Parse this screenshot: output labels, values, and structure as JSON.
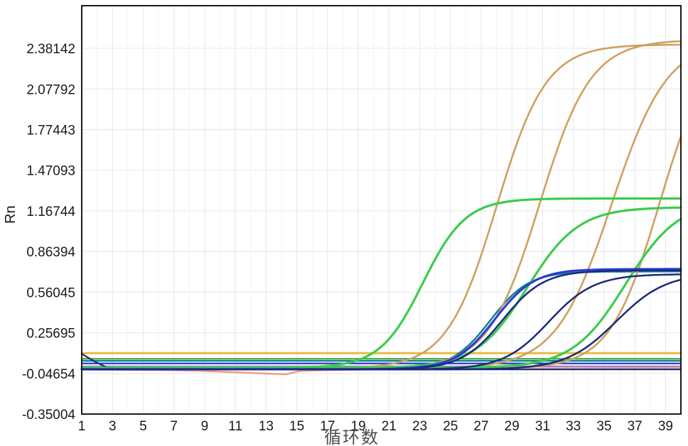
{
  "chart_data": {
    "type": "line",
    "title": "",
    "xlabel": "循环数",
    "ylabel": "Rn",
    "xlim": [
      1,
      40
    ],
    "ylim": [
      -0.35004,
      2.7
    ],
    "grid": true,
    "legend": "none",
    "x_ticks": [
      1,
      3,
      5,
      7,
      9,
      11,
      13,
      15,
      17,
      19,
      21,
      23,
      25,
      27,
      29,
      31,
      33,
      35,
      37,
      39
    ],
    "y_ticks": [
      2.38142,
      2.07792,
      1.77443,
      1.47093,
      1.16744,
      0.86394,
      0.56045,
      0.25695,
      -0.04654,
      -0.35004
    ],
    "y_tick_labels": [
      "2.38142",
      "2.07792",
      "1.77443",
      "1.47093",
      "1.16744",
      "0.86394",
      "0.56045",
      "0.25695",
      "-0.04654",
      "-0.35004"
    ],
    "threshold_rn": 0.105,
    "colors": {
      "tan_orange": "#cfa05e",
      "gold_threshold": "#e8bc3e",
      "bright_green": "#3ccc4c",
      "flat_green": "#2fa23c",
      "teal": "#15808e",
      "royal_blue": "#2a3cd2",
      "navy": "#1b2a7e",
      "purple": "#9383d8",
      "salmon": "#ef9f8f",
      "baseline_green": "#49a03c",
      "grid_major": "#e9eaf2",
      "grid_minor": "#f4f5fa",
      "axis": "#1a1a1a"
    },
    "series": [
      {
        "name": "threshold-line",
        "kind": "flat",
        "value": 0.105,
        "color": "#e8bc3e",
        "width": 3
      },
      {
        "name": "flat-green-control",
        "kind": "flat",
        "value": 0.062,
        "color": "#2fa23c",
        "width": 2.2
      },
      {
        "name": "flat-teal-control",
        "kind": "flat",
        "value": 0.047,
        "color": "#15808e",
        "width": 2.2
      },
      {
        "name": "flat-blue-control",
        "kind": "flat",
        "value": 0.028,
        "color": "#2a3cd2",
        "width": 2.2
      },
      {
        "name": "flat-purple-control",
        "kind": "flat",
        "value": 0.006,
        "color": "#9383d8",
        "width": 2.2
      },
      {
        "name": "flat-green-baseline",
        "kind": "flat",
        "value": -0.012,
        "color": "#49a03c",
        "width": 2.2
      },
      {
        "name": "salmon-baseline-dip",
        "kind": "points",
        "color": "#ef9f8f",
        "width": 2.6,
        "points": [
          [
            1,
            -0.018
          ],
          [
            4,
            -0.02
          ],
          [
            7,
            -0.023
          ],
          [
            9,
            -0.028
          ],
          [
            11,
            -0.038
          ],
          [
            13,
            -0.048
          ],
          [
            14.3,
            -0.053
          ],
          [
            15.2,
            -0.028
          ],
          [
            17,
            -0.022
          ],
          [
            20,
            -0.017
          ],
          [
            25,
            -0.012
          ],
          [
            32,
            -0.008
          ],
          [
            40,
            -0.006
          ]
        ]
      },
      {
        "name": "navy-start-transient",
        "kind": "points",
        "color": "#1b2a7e",
        "width": 2.2,
        "points": [
          [
            1,
            0.1
          ],
          [
            1.8,
            0.045
          ],
          [
            2.6,
            0.0
          ],
          [
            3.5,
            -0.014
          ],
          [
            5,
            -0.017
          ],
          [
            40,
            -0.017
          ]
        ]
      },
      {
        "name": "teal-amplification",
        "kind": "sigmoid",
        "base": -0.015,
        "amp": 0.73,
        "mid": 27.6,
        "k": 0.8,
        "color": "#15808e",
        "width": 2.6
      },
      {
        "name": "orange-amplification-1",
        "kind": "sigmoid",
        "base": -0.01,
        "amp": 2.42,
        "mid": 28.0,
        "k": 0.62,
        "color": "#cfa05e",
        "width": 2.6
      },
      {
        "name": "orange-amplification-2",
        "kind": "sigmoid",
        "base": -0.01,
        "amp": 2.455,
        "mid": 30.8,
        "k": 0.6,
        "color": "#cfa05e",
        "width": 2.6
      },
      {
        "name": "orange-amplification-3",
        "kind": "sigmoid",
        "base": -0.01,
        "amp": 2.46,
        "mid": 35.5,
        "k": 0.55,
        "color": "#cfa05e",
        "width": 2.6
      },
      {
        "name": "orange-amplification-4",
        "kind": "sigmoid",
        "base": -0.01,
        "amp": 2.46,
        "mid": 38.6,
        "k": 0.62,
        "color": "#cfa05e",
        "width": 2.6
      },
      {
        "name": "green-amplification-1",
        "kind": "sigmoid",
        "base": -0.005,
        "amp": 1.265,
        "mid": 23.2,
        "k": 0.72,
        "color": "#3ccc4c",
        "width": 3.2
      },
      {
        "name": "green-amplification-2",
        "kind": "sigmoid",
        "base": -0.005,
        "amp": 1.2,
        "mid": 30.0,
        "k": 0.6,
        "color": "#3ccc4c",
        "width": 3.2
      },
      {
        "name": "green-amplification-3",
        "kind": "sigmoid",
        "base": -0.005,
        "amp": 1.25,
        "mid": 36.4,
        "k": 0.58,
        "color": "#3ccc4c",
        "width": 3.2
      },
      {
        "name": "royal-blue-amplification",
        "kind": "sigmoid",
        "base": -0.015,
        "amp": 0.748,
        "mid": 27.9,
        "k": 0.78,
        "color": "#2a3cd2",
        "width": 3.0
      },
      {
        "name": "navy-amplification-1",
        "kind": "sigmoid",
        "base": -0.017,
        "amp": 0.74,
        "mid": 28.4,
        "k": 0.75,
        "color": "#1b2a7e",
        "width": 2.5
      },
      {
        "name": "navy-amplification-2",
        "kind": "sigmoid",
        "base": -0.017,
        "amp": 0.712,
        "mid": 31.4,
        "k": 0.68,
        "color": "#1b2a7e",
        "width": 2.5
      },
      {
        "name": "navy-amplification-3",
        "kind": "sigmoid",
        "base": -0.017,
        "amp": 0.72,
        "mid": 35.8,
        "k": 0.62,
        "color": "#1b2a7e",
        "width": 2.5
      }
    ]
  }
}
